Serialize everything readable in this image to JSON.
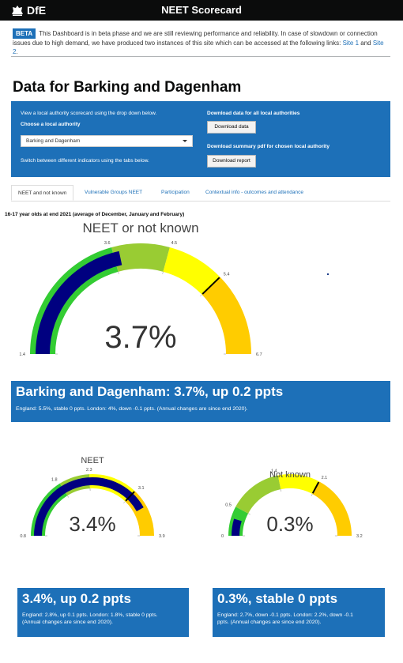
{
  "header": {
    "logo_text": "DfE",
    "logo_icon": "crest-icon",
    "title": "NEET Scorecard"
  },
  "beta": {
    "tag": "BETA",
    "text": "This Dashboard is in beta phase and we are still reviewing performance and reliability. In case of slowdown or connection issues due to high demand, we have produced two instances of this site which can be accessed at the following links: ",
    "link1": "Site 1",
    "and": " and ",
    "link2": "Site 2",
    "end": "."
  },
  "page_title": "Data for Barking and Dagenham",
  "panel": {
    "view_hint": "View a local authority scorecard using the drop down below.",
    "choose_label": "Choose a local authority",
    "selected_la": "Barking and Dagenham",
    "switch_hint": "Switch between different indicators using the tabs below.",
    "download_all_label": "Download data for all local authorities",
    "download_data_button": "Download data",
    "download_pdf_label": "Download summary pdf for chosen local authority",
    "download_report_button": "Download report"
  },
  "tabs": [
    {
      "label": "NEET and not known",
      "active": true
    },
    {
      "label": "Vulnerable Groups NEET",
      "active": false
    },
    {
      "label": "Participation",
      "active": false
    },
    {
      "label": "Contextual info - outcomes and attendance",
      "active": false
    }
  ],
  "subcaption": "16-17 year olds at end 2021 (average of December, January and February)",
  "gauges": [
    {
      "id": "main",
      "title": "NEET or not known",
      "value": 3.7,
      "display": "3.7%",
      "min": 1.4,
      "max": 6.7,
      "bands": [
        {
          "to": 3.6,
          "color": "#33cc33"
        },
        {
          "to": 4.5,
          "color": "#99cc33"
        },
        {
          "to": 5.4,
          "color": "#ffff00"
        },
        {
          "to": 6.7,
          "color": "#ffcc00"
        }
      ],
      "over_color": "#ff0000",
      "bar_color": "#000080",
      "marker": 5.4,
      "ticks": [
        "1.4",
        "3.6",
        "4.5",
        "5.4",
        "6.7"
      ]
    },
    {
      "id": "neet",
      "title": "NEET",
      "value": 3.4,
      "display": "3.4%",
      "min": 0.8,
      "max": 3.9,
      "bands": [
        {
          "to": 1.8,
          "color": "#33cc33"
        },
        {
          "to": 2.3,
          "color": "#99cc33"
        },
        {
          "to": 3.1,
          "color": "#ffff00"
        },
        {
          "to": 3.9,
          "color": "#ffcc00"
        }
      ],
      "over_color": "#ff0000",
      "bar_color": "#000080",
      "marker": 3.1,
      "ticks": [
        "0.8",
        "1.8",
        "2.3",
        "3.1",
        "3.9"
      ]
    },
    {
      "id": "notknown",
      "title": "Not known",
      "value": 0.3,
      "display": "0.3%",
      "min": 0,
      "max": 3.2,
      "bands": [
        {
          "to": 0.5,
          "color": "#33cc33"
        },
        {
          "to": 1.4,
          "color": "#99cc33"
        },
        {
          "to": 2.1,
          "color": "#ffff00"
        },
        {
          "to": 3.2,
          "color": "#ffcc00"
        }
      ],
      "over_color": "#ff0000",
      "bar_color": "#000080",
      "marker": 2.1,
      "ticks": [
        "0",
        "0.5",
        "1.4",
        "2.1",
        "3.2"
      ]
    }
  ],
  "cards": {
    "main": {
      "heading": "Barking and Dagenham: 3.7%, up 0.2 ppts",
      "sub": "England: 5.5%, stable 0 ppts. London: 4%, down -0.1 ppts. (Annual changes are since end 2020)."
    },
    "neet": {
      "heading": "3.4%, up 0.2 ppts",
      "sub1": "England: 2.8%, up 0.1 ppts. London: 1.8%, stable 0 ppts.",
      "sub2": "(Annual changes are since end 2020)."
    },
    "notknown": {
      "heading": "0.3%, stable 0 ppts",
      "sub1": "England: 2.7%, down -0.1 ppts. London: 2.2%, down -0.1",
      "sub2": "ppts. (Annual changes are since end 2020)."
    }
  }
}
